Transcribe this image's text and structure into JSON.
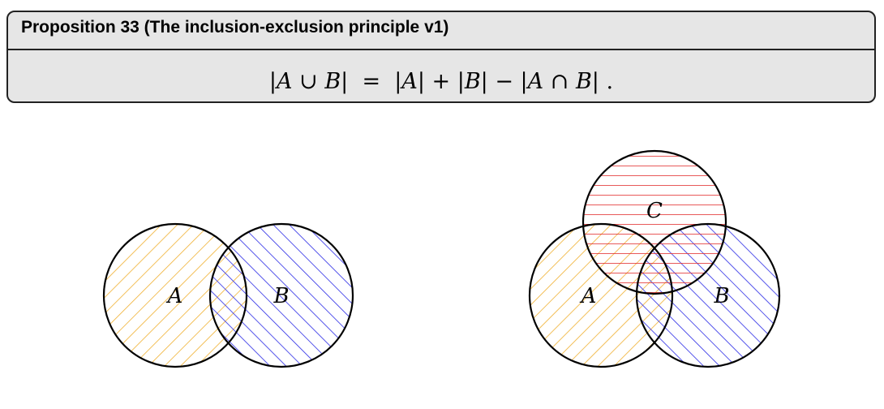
{
  "proposition": {
    "header": "Proposition 33 (The inclusion-exclusion principle v1)",
    "formula": {
      "lhs_open": "|",
      "lhs_A": "A",
      "lhs_cup": " ∪ ",
      "lhs_B": "B",
      "lhs_close": "|",
      "equals": "  =  ",
      "t1_open": "|",
      "t1_A": "A",
      "t1_close": "| + |",
      "t2_B": "B",
      "t2_close": "| − |",
      "t3_A": "A",
      "t3_cap": " ∩ ",
      "t3_B": "B",
      "t3_close": "| ."
    }
  },
  "diagrams": {
    "two_set": {
      "label_a": "A",
      "label_b": "B"
    },
    "three_set": {
      "label_a": "A",
      "label_b": "B",
      "label_c": "C"
    }
  },
  "colors": {
    "set_a_hatch": "#f0b030",
    "set_b_hatch": "#2a2ae6",
    "set_c_hatch": "#e23030",
    "outline": "#000000",
    "box_fill": "#e6e6e6"
  }
}
